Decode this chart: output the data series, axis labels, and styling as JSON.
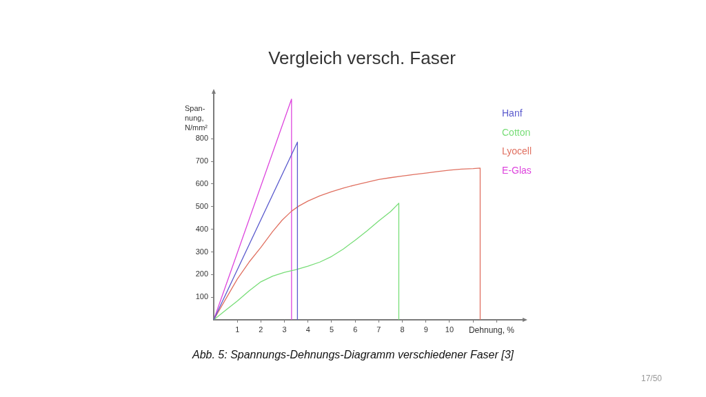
{
  "chart_data": {
    "type": "line",
    "title": "Vergleich versch. Faser",
    "xlabel": "Dehnung, %",
    "ylabel": "Span-\nnung,\nN/mm²",
    "annotations": [
      "Abb. 5: Spannungs-Dehnungs-Diagramm verschiedener Faser [3]",
      "17/50"
    ],
    "xlim": [
      0,
      13.1
    ],
    "xticks": [
      1,
      2,
      3,
      4,
      5,
      6,
      7,
      8,
      9,
      10,
      {
        "value": 11,
        "label": null
      },
      {
        "value": 12,
        "label": null
      }
    ],
    "ylim": [
      0,
      1000
    ],
    "yticks": [
      100,
      200,
      300,
      400,
      500,
      600,
      700,
      800
    ],
    "grid": false,
    "legend": "top right",
    "marker": "none",
    "line_style": "solid",
    "series": [
      {
        "name": "Hanf",
        "color": "#5a5acd",
        "x": [
          0,
          3.55,
          3.55
        ],
        "values": [
          0,
          785,
          0
        ]
      },
      {
        "name": "Cotton",
        "color": "#77dd77",
        "x": [
          0,
          0.5,
          1,
          1.5,
          2,
          2.5,
          3,
          3.5,
          4,
          4.5,
          5,
          5.5,
          6,
          6.5,
          7,
          7.5,
          7.85,
          7.85
        ],
        "values": [
          0,
          42,
          83,
          128,
          168,
          193,
          210,
          222,
          237,
          255,
          280,
          313,
          352,
          393,
          437,
          478,
          515,
          0
        ]
      },
      {
        "name": "Lyocell",
        "color": "#e07060",
        "x": [
          0,
          0.5,
          1,
          1.5,
          2,
          2.5,
          2.9,
          3.3,
          3.6,
          4,
          4.5,
          5,
          5.5,
          6,
          6.5,
          7,
          7.5,
          8,
          8.5,
          9,
          9.5,
          10,
          10.5,
          11,
          11.3,
          11.3
        ],
        "values": [
          0,
          90,
          180,
          255,
          320,
          390,
          440,
          480,
          502,
          525,
          548,
          566,
          582,
          596,
          608,
          620,
          628,
          635,
          642,
          648,
          655,
          661,
          666,
          668,
          670,
          0
        ]
      },
      {
        "name": "E-Glas",
        "color": "#dd44dd",
        "x": [
          0,
          3.3,
          3.3
        ],
        "values": [
          0,
          975,
          0
        ]
      }
    ]
  }
}
